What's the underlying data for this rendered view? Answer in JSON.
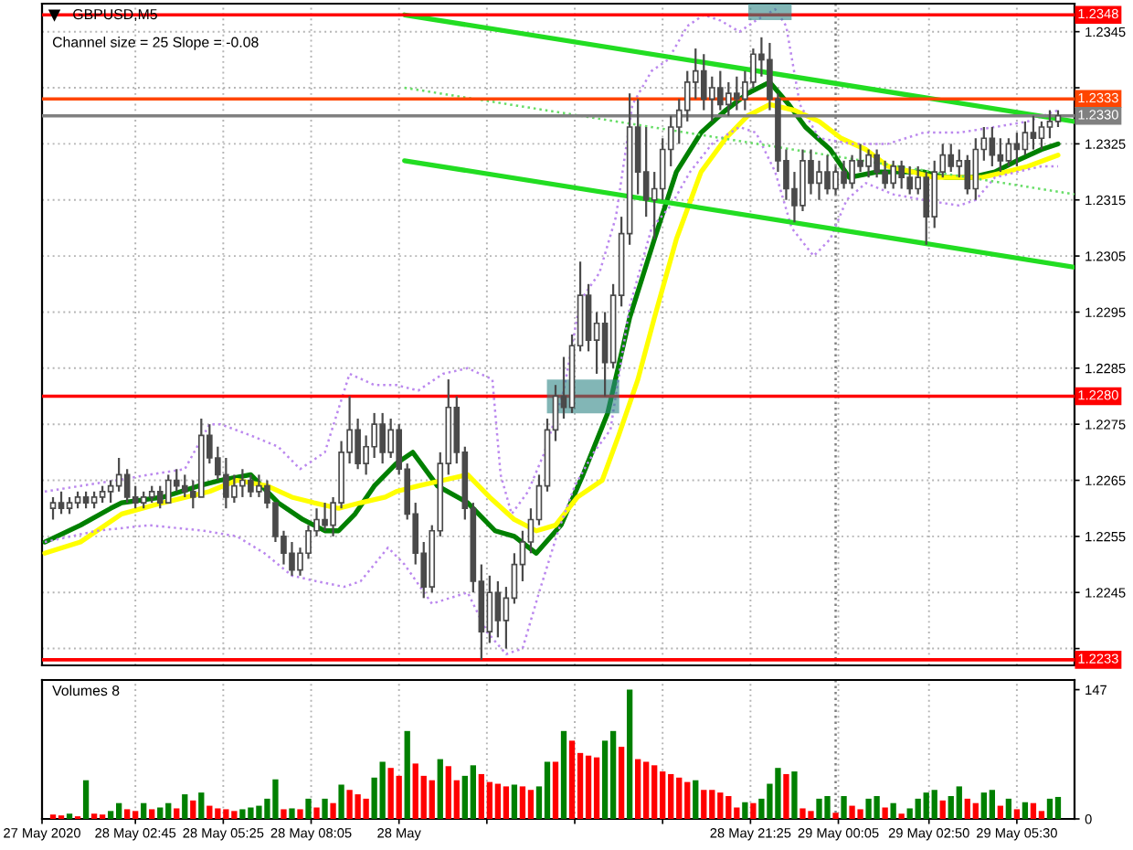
{
  "chart_data": [
    {
      "type": "candlestick",
      "title": "GBPUSD,M5",
      "annotations": [
        "Channel size = 25 Slope = -0.08"
      ],
      "x": [
        "2020-05-28T00:15",
        "2020-05-28T00:30",
        "2020-05-28T00:45",
        "2020-05-28T01:00",
        "2020-05-28T01:15",
        "2020-05-28T01:30",
        "2020-05-28T01:45",
        "2020-05-28T02:00",
        "2020-05-28T02:15",
        "2020-05-28T02:30",
        "2020-05-28T02:45",
        "2020-05-28T03:00",
        "2020-05-28T03:15",
        "2020-05-28T03:30",
        "2020-05-28T03:45",
        "2020-05-28T04:00",
        "2020-05-28T04:15",
        "2020-05-28T04:30",
        "2020-05-28T04:45",
        "2020-05-28T05:00",
        "2020-05-28T05:15",
        "2020-05-28T05:30",
        "2020-05-28T05:45",
        "2020-05-28T06:00",
        "2020-05-28T06:15",
        "2020-05-28T06:30",
        "2020-05-28T06:45",
        "2020-05-28T07:00",
        "2020-05-28T07:15",
        "2020-05-28T07:30",
        "2020-05-28T07:45",
        "2020-05-28T08:00",
        "2020-05-28T08:15",
        "2020-05-28T08:30",
        "2020-05-28T08:45",
        "2020-05-28T09:00",
        "2020-05-28T09:15",
        "2020-05-28T09:30",
        "2020-05-28T09:45",
        "2020-05-28T10:00",
        "2020-05-28T10:15",
        "2020-05-28T10:30",
        "2020-05-28T10:45",
        "2020-05-28T11:00",
        "2020-05-28T11:15",
        "2020-05-28T11:30",
        "2020-05-28T11:45",
        "2020-05-28T12:00",
        "2020-05-28T12:15",
        "2020-05-28T12:30",
        "2020-05-28T12:45",
        "2020-05-28T13:00",
        "2020-05-28T13:15",
        "2020-05-28T13:30",
        "2020-05-28T13:45",
        "2020-05-28T14:00",
        "2020-05-28T14:15",
        "2020-05-28T14:30",
        "2020-05-28T14:45",
        "2020-05-28T15:00",
        "2020-05-28T15:15",
        "2020-05-28T15:30",
        "2020-05-28T15:45",
        "2020-05-28T16:00",
        "2020-05-28T16:15",
        "2020-05-28T16:30",
        "2020-05-28T16:45",
        "2020-05-28T17:00",
        "2020-05-28T17:15",
        "2020-05-28T17:30",
        "2020-05-28T17:45",
        "2020-05-28T18:00",
        "2020-05-28T18:15",
        "2020-05-28T18:30",
        "2020-05-28T18:45",
        "2020-05-28T19:00",
        "2020-05-28T19:15",
        "2020-05-28T19:30",
        "2020-05-28T19:45",
        "2020-05-28T20:00",
        "2020-05-28T20:15",
        "2020-05-28T20:30",
        "2020-05-28T20:45",
        "2020-05-28T21:00",
        "2020-05-28T21:15",
        "2020-05-28T21:30",
        "2020-05-28T21:45",
        "2020-05-28T22:00",
        "2020-05-28T22:15",
        "2020-05-28T22:30",
        "2020-05-28T22:45",
        "2020-05-28T23:00",
        "2020-05-28T23:15",
        "2020-05-28T23:30",
        "2020-05-28T23:45",
        "2020-05-29T00:00",
        "2020-05-29T00:15",
        "2020-05-29T00:30",
        "2020-05-29T00:45",
        "2020-05-29T01:00",
        "2020-05-29T01:15",
        "2020-05-29T01:30",
        "2020-05-29T01:45",
        "2020-05-29T02:00",
        "2020-05-29T02:15",
        "2020-05-29T02:30",
        "2020-05-29T02:45",
        "2020-05-29T03:00",
        "2020-05-29T03:15",
        "2020-05-29T03:30",
        "2020-05-29T03:45",
        "2020-05-29T04:00",
        "2020-05-29T04:15",
        "2020-05-29T04:30",
        "2020-05-29T04:45",
        "2020-05-29T05:00",
        "2020-05-29T05:15",
        "2020-05-29T05:30",
        "2020-05-29T05:45",
        "2020-05-29T06:00",
        "2020-05-29T06:15",
        "2020-05-29T06:30",
        "2020-05-29T06:45"
      ],
      "ohlc": [
        [
          1.226,
          1.2262,
          1.2258,
          1.2261
        ],
        [
          1.2261,
          1.2263,
          1.2259,
          1.226
        ],
        [
          1.226,
          1.2262,
          1.2259,
          1.2261
        ],
        [
          1.2261,
          1.2263,
          1.226,
          1.2262
        ],
        [
          1.2262,
          1.2263,
          1.226,
          1.2261
        ],
        [
          1.2261,
          1.2263,
          1.226,
          1.2262
        ],
        [
          1.2262,
          1.2264,
          1.2261,
          1.2263
        ],
        [
          1.2263,
          1.2265,
          1.2261,
          1.2264
        ],
        [
          1.2264,
          1.2269,
          1.2263,
          1.2266
        ],
        [
          1.2266,
          1.2267,
          1.2261,
          1.2262
        ],
        [
          1.2262,
          1.2264,
          1.226,
          1.2261
        ],
        [
          1.2261,
          1.2263,
          1.226,
          1.2262
        ],
        [
          1.2262,
          1.2264,
          1.2261,
          1.2263
        ],
        [
          1.2263,
          1.2264,
          1.226,
          1.2261
        ],
        [
          1.2261,
          1.2266,
          1.2261,
          1.2265
        ],
        [
          1.2265,
          1.2267,
          1.2263,
          1.2264
        ],
        [
          1.2264,
          1.2266,
          1.2262,
          1.2263
        ],
        [
          1.2263,
          1.2265,
          1.226,
          1.2262
        ],
        [
          1.2262,
          1.2276,
          1.2262,
          1.2273
        ],
        [
          1.2273,
          1.2275,
          1.2268,
          1.2269
        ],
        [
          1.2269,
          1.2271,
          1.2265,
          1.2266
        ],
        [
          1.2266,
          1.2269,
          1.226,
          1.2262
        ],
        [
          1.2262,
          1.2266,
          1.2261,
          1.2264
        ],
        [
          1.2264,
          1.2267,
          1.2262,
          1.2265
        ],
        [
          1.2265,
          1.2266,
          1.2262,
          1.2263
        ],
        [
          1.2263,
          1.2266,
          1.2262,
          1.2264
        ],
        [
          1.2264,
          1.2265,
          1.226,
          1.2261
        ],
        [
          1.2261,
          1.2261,
          1.2254,
          1.2255
        ],
        [
          1.2255,
          1.2256,
          1.225,
          1.2252
        ],
        [
          1.2252,
          1.2254,
          1.2248,
          1.2249
        ],
        [
          1.2249,
          1.2253,
          1.2248,
          1.2252
        ],
        [
          1.2252,
          1.2257,
          1.2251,
          1.2256
        ],
        [
          1.2256,
          1.226,
          1.2255,
          1.2258
        ],
        [
          1.2258,
          1.2261,
          1.2256,
          1.2257
        ],
        [
          1.2257,
          1.2262,
          1.2255,
          1.2261
        ],
        [
          1.2261,
          1.2272,
          1.226,
          1.227
        ],
        [
          1.227,
          1.228,
          1.2268,
          1.2274
        ],
        [
          1.2274,
          1.2276,
          1.2267,
          1.2268
        ],
        [
          1.2268,
          1.2273,
          1.2266,
          1.2271
        ],
        [
          1.2271,
          1.2277,
          1.2269,
          1.2275
        ],
        [
          1.2275,
          1.2277,
          1.2268,
          1.227
        ],
        [
          1.227,
          1.2276,
          1.2269,
          1.2274
        ],
        [
          1.2274,
          1.2275,
          1.2266,
          1.2267
        ],
        [
          1.2267,
          1.2268,
          1.2258,
          1.2259
        ],
        [
          1.2259,
          1.2261,
          1.225,
          1.2252
        ],
        [
          1.2252,
          1.2254,
          1.2244,
          1.2246
        ],
        [
          1.2246,
          1.2257,
          1.2245,
          1.2256
        ],
        [
          1.2256,
          1.227,
          1.2255,
          1.2268
        ],
        [
          1.2268,
          1.2283,
          1.2266,
          1.2278
        ],
        [
          1.2278,
          1.228,
          1.2268,
          1.227
        ],
        [
          1.227,
          1.2271,
          1.2258,
          1.226
        ],
        [
          1.226,
          1.2261,
          1.2245,
          1.2247
        ],
        [
          1.2247,
          1.225,
          1.2233,
          1.2238
        ],
        [
          1.2238,
          1.2248,
          1.2236,
          1.2245
        ],
        [
          1.2245,
          1.2247,
          1.2237,
          1.224
        ],
        [
          1.224,
          1.2246,
          1.2235,
          1.2244
        ],
        [
          1.2244,
          1.2252,
          1.2243,
          1.225
        ],
        [
          1.225,
          1.2256,
          1.2247,
          1.2254
        ],
        [
          1.2254,
          1.226,
          1.2252,
          1.2258
        ],
        [
          1.2258,
          1.2266,
          1.2257,
          1.2264
        ],
        [
          1.2264,
          1.2276,
          1.2263,
          1.2274
        ],
        [
          1.2274,
          1.2282,
          1.2272,
          1.228
        ],
        [
          1.228,
          1.2287,
          1.2276,
          1.2278
        ],
        [
          1.2278,
          1.2291,
          1.2277,
          1.2289
        ],
        [
          1.2289,
          1.2304,
          1.2288,
          1.2298
        ],
        [
          1.2298,
          1.23,
          1.2288,
          1.229
        ],
        [
          1.229,
          1.2295,
          1.2284,
          1.2293
        ],
        [
          1.2293,
          1.2295,
          1.228,
          1.2286
        ],
        [
          1.2286,
          1.23,
          1.2285,
          1.2298
        ],
        [
          1.2298,
          1.2312,
          1.2296,
          1.2309
        ],
        [
          1.2309,
          1.2334,
          1.2307,
          1.2328
        ],
        [
          1.2328,
          1.2333,
          1.2316,
          1.232
        ],
        [
          1.232,
          1.2328,
          1.2312,
          1.2315
        ],
        [
          1.2315,
          1.232,
          1.2308,
          1.2317
        ],
        [
          1.2317,
          1.2326,
          1.2315,
          1.2324
        ],
        [
          1.2324,
          1.233,
          1.2321,
          1.2328
        ],
        [
          1.2328,
          1.2333,
          1.2325,
          1.2331
        ],
        [
          1.2331,
          1.2338,
          1.2329,
          1.2336
        ],
        [
          1.2336,
          1.2342,
          1.2333,
          1.2338
        ],
        [
          1.2338,
          1.2341,
          1.2331,
          1.2333
        ],
        [
          1.2333,
          1.2337,
          1.2329,
          1.2335
        ],
        [
          1.2335,
          1.2338,
          1.2331,
          1.2332
        ],
        [
          1.2332,
          1.2336,
          1.233,
          1.2334
        ],
        [
          1.2334,
          1.2337,
          1.2331,
          1.2333
        ],
        [
          1.2333,
          1.2338,
          1.2331,
          1.2336
        ],
        [
          1.2336,
          1.2342,
          1.2335,
          1.2341
        ],
        [
          1.2341,
          1.2344,
          1.2337,
          1.234
        ],
        [
          1.234,
          1.2343,
          1.2331,
          1.2333
        ],
        [
          1.2333,
          1.2334,
          1.232,
          1.2322
        ],
        [
          1.2322,
          1.2324,
          1.2315,
          1.2317
        ],
        [
          1.2317,
          1.232,
          1.2311,
          1.2314
        ],
        [
          1.2314,
          1.2324,
          1.2313,
          1.2322
        ],
        [
          1.2322,
          1.2324,
          1.2316,
          1.2318
        ],
        [
          1.2318,
          1.2322,
          1.2315,
          1.232
        ],
        [
          1.232,
          1.2323,
          1.2316,
          1.2317
        ],
        [
          1.2317,
          1.2321,
          1.2316,
          1.232
        ],
        [
          1.232,
          1.2322,
          1.2317,
          1.2318
        ],
        [
          1.2318,
          1.2323,
          1.2317,
          1.2322
        ],
        [
          1.2322,
          1.2325,
          1.232,
          1.2321
        ],
        [
          1.2321,
          1.2324,
          1.2319,
          1.2323
        ],
        [
          1.2323,
          1.2324,
          1.2319,
          1.232
        ],
        [
          1.232,
          1.2322,
          1.2317,
          1.2318
        ],
        [
          1.2318,
          1.2322,
          1.2317,
          1.2321
        ],
        [
          1.2321,
          1.2322,
          1.2317,
          1.2319
        ],
        [
          1.2319,
          1.2321,
          1.2316,
          1.2317
        ],
        [
          1.2317,
          1.2321,
          1.2316,
          1.2319
        ],
        [
          1.2319,
          1.232,
          1.2307,
          1.2312
        ],
        [
          1.2312,
          1.2322,
          1.231,
          1.232
        ],
        [
          1.232,
          1.2325,
          1.2319,
          1.2323
        ],
        [
          1.2323,
          1.2325,
          1.232,
          1.2321
        ],
        [
          1.2321,
          1.2324,
          1.2319,
          1.2322
        ],
        [
          1.2322,
          1.2323,
          1.2316,
          1.2317
        ],
        [
          1.2317,
          1.2326,
          1.2315,
          1.2324
        ],
        [
          1.2324,
          1.2328,
          1.2322,
          1.2326
        ],
        [
          1.2326,
          1.2328,
          1.2321,
          1.2323
        ],
        [
          1.2323,
          1.2326,
          1.232,
          1.2322
        ],
        [
          1.2322,
          1.2326,
          1.2321,
          1.2325
        ],
        [
          1.2325,
          1.2327,
          1.2321,
          1.2324
        ],
        [
          1.2324,
          1.2329,
          1.2323,
          1.2327
        ],
        [
          1.2327,
          1.233,
          1.2324,
          1.2326
        ],
        [
          1.2326,
          1.2329,
          1.2324,
          1.2328
        ],
        [
          1.2328,
          1.2331,
          1.2326,
          1.2329
        ],
        [
          1.2329,
          1.2331,
          1.2328,
          1.233
        ]
      ],
      "color": "#4a4a4a",
      "series": [
        {
          "type": "line",
          "color": "#008000",
          "x": [
            "2020-05-28T00:00",
            "2020-05-28T01:05",
            "2020-05-28T02:00",
            "2020-05-28T02:20",
            "2020-05-28T03:35",
            "2020-05-28T04:40",
            "2020-05-28T05:20",
            "2020-05-28T06:15",
            "2020-05-28T06:35",
            "2020-05-28T07:05",
            "2020-05-28T07:50",
            "2020-05-28T08:30",
            "2020-05-28T08:55",
            "2020-05-28T09:25",
            "2020-05-28T10:00",
            "2020-05-28T10:40",
            "2020-05-28T11:10",
            "2020-05-28T11:55",
            "2020-05-28T12:50",
            "2020-05-28T13:40",
            "2020-05-28T14:15",
            "2020-05-28T14:55",
            "2020-05-28T15:40",
            "2020-05-28T16:20",
            "2020-05-28T17:05",
            "2020-05-28T17:45",
            "2020-05-28T18:30",
            "2020-05-28T19:10",
            "2020-05-28T19:55",
            "2020-05-28T20:40",
            "2020-05-28T21:20",
            "2020-05-28T22:00",
            "2020-05-28T22:35",
            "2020-05-28T23:05",
            "2020-05-28T23:50",
            "2020-05-29T00:25",
            "2020-05-29T01:15",
            "2020-05-29T02:00",
            "2020-05-29T02:40",
            "2020-05-29T03:20",
            "2020-05-29T04:05",
            "2020-05-29T04:50",
            "2020-05-29T05:30",
            "2020-05-29T06:15",
            "2020-05-29T06:45"
          ],
          "values": [
            1.2254,
            1.2257,
            1.226,
            1.2261,
            1.2262,
            1.2264,
            1.2265,
            1.2266,
            1.2264,
            1.2261,
            1.2258,
            1.2256,
            1.2256,
            1.2259,
            1.2264,
            1.2268,
            1.227,
            1.2264,
            1.2261,
            1.2256,
            1.2255,
            1.2252,
            1.2257,
            1.2266,
            1.2277,
            1.2294,
            1.2308,
            1.232,
            1.2327,
            1.2331,
            1.2334,
            1.2336,
            1.2332,
            1.2328,
            1.2324,
            1.2319,
            1.232,
            1.232,
            1.232,
            1.2319,
            1.2319,
            1.232,
            1.2322,
            1.2324,
            1.2325
          ]
        },
        {
          "type": "line",
          "color": "#ffff00",
          "x": [
            "2020-05-28T00:00",
            "2020-05-28T01:05",
            "2020-05-28T02:20",
            "2020-05-28T03:35",
            "2020-05-28T05:00",
            "2020-05-28T05:50",
            "2020-05-28T06:45",
            "2020-05-28T07:30",
            "2020-05-28T08:10",
            "2020-05-28T08:55",
            "2020-05-28T09:35",
            "2020-05-28T10:20",
            "2020-05-28T10:40",
            "2020-05-28T11:20",
            "2020-05-28T12:05",
            "2020-05-28T12:50",
            "2020-05-28T13:30",
            "2020-05-28T14:15",
            "2020-05-28T14:55",
            "2020-05-28T15:30",
            "2020-05-28T16:10",
            "2020-05-28T16:55",
            "2020-05-28T17:25",
            "2020-05-28T18:00",
            "2020-05-28T18:30",
            "2020-05-28T19:10",
            "2020-05-28T19:55",
            "2020-05-28T20:40",
            "2020-05-28T21:20",
            "2020-05-28T22:00",
            "2020-05-28T22:45",
            "2020-05-28T23:30",
            "2020-05-29T00:10",
            "2020-05-29T00:55",
            "2020-05-29T01:35",
            "2020-05-29T02:20",
            "2020-05-29T03:00",
            "2020-05-29T03:45",
            "2020-05-29T04:25",
            "2020-05-29T05:10",
            "2020-05-29T05:50",
            "2020-05-29T06:45"
          ],
          "values": [
            1.2252,
            1.2254,
            1.2259,
            1.2261,
            1.2263,
            1.2265,
            1.2264,
            1.2262,
            1.2261,
            1.226,
            1.2261,
            1.2262,
            1.2263,
            1.2264,
            1.2265,
            1.2266,
            1.2262,
            1.2258,
            1.2256,
            1.2257,
            1.2262,
            1.2265,
            1.2273,
            1.2283,
            1.2294,
            1.2308,
            1.232,
            1.2326,
            1.233,
            1.2332,
            1.2331,
            1.2329,
            1.2326,
            1.2324,
            1.2321,
            1.232,
            1.2319,
            1.2319,
            1.2319,
            1.232,
            1.2321,
            1.2323
          ]
        },
        {
          "type": "line",
          "color": "#bb88ee",
          "line_style": "dotted",
          "x": [
            "2020-05-28T00:00",
            "2020-05-28T01:05",
            "2020-05-28T02:10",
            "2020-05-28T03:10",
            "2020-05-28T04:15",
            "2020-05-28T05:00",
            "2020-05-28T05:20",
            "2020-05-28T06:15",
            "2020-05-28T07:05",
            "2020-05-28T07:45",
            "2020-05-28T08:30",
            "2020-05-28T09:15",
            "2020-05-28T10:00",
            "2020-05-28T10:40",
            "2020-05-28T11:20",
            "2020-05-28T12:05",
            "2020-05-28T12:50",
            "2020-05-28T13:35",
            "2020-05-28T13:50",
            "2020-05-28T14:10",
            "2020-05-28T14:40",
            "2020-05-28T15:10",
            "2020-05-28T15:45",
            "2020-05-28T16:15",
            "2020-05-28T16:50",
            "2020-05-28T17:20",
            "2020-05-28T17:50",
            "2020-05-28T18:25",
            "2020-05-28T18:55",
            "2020-05-28T19:30",
            "2020-05-28T20:00",
            "2020-05-28T20:30",
            "2020-05-28T21:05",
            "2020-05-28T21:35",
            "2020-05-28T22:10",
            "2020-05-28T22:30",
            "2020-05-28T22:55",
            "2020-05-28T23:30",
            "2020-05-29T00:30",
            "2020-05-29T01:35",
            "2020-05-29T02:40",
            "2020-05-29T03:45",
            "2020-05-29T04:50",
            "2020-05-29T05:50",
            "2020-05-29T06:45"
          ],
          "values": [
            1.2263,
            1.2264,
            1.2265,
            1.2266,
            1.2267,
            1.2275,
            1.2275,
            1.2273,
            1.2271,
            1.2267,
            1.227,
            1.2284,
            1.2282,
            1.2282,
            1.2281,
            1.2284,
            1.2285,
            1.2283,
            1.2266,
            1.2259,
            1.2263,
            1.227,
            1.2281,
            1.2297,
            1.2302,
            1.2312,
            1.2332,
            1.2338,
            1.234,
            1.2346,
            1.2348,
            1.2347,
            1.2345,
            1.2347,
            1.2349,
            1.2346,
            1.2332,
            1.2326,
            1.2325,
            1.2325,
            1.2327,
            1.2327,
            1.2328,
            1.2329,
            1.2331
          ]
        },
        {
          "type": "line",
          "color": "#bb88ee",
          "line_style": "dotted",
          "x": [
            "2020-05-28T00:00",
            "2020-05-28T01:35",
            "2020-05-28T03:10",
            "2020-05-28T04:50",
            "2020-05-28T05:50",
            "2020-05-28T06:40",
            "2020-05-28T07:30",
            "2020-05-28T08:15",
            "2020-05-28T09:05",
            "2020-05-28T09:35",
            "2020-05-28T10:25",
            "2020-05-28T10:55",
            "2020-05-28T11:45",
            "2020-05-28T12:50",
            "2020-05-28T13:25",
            "2020-05-28T14:00",
            "2020-05-28T14:30",
            "2020-05-28T15:00",
            "2020-05-28T15:35",
            "2020-05-28T16:05",
            "2020-05-28T16:40",
            "2020-05-28T17:10",
            "2020-05-28T17:45",
            "2020-05-28T18:25",
            "2020-05-28T19:00",
            "2020-05-28T19:35",
            "2020-05-28T20:15",
            "2020-05-28T21:05",
            "2020-05-28T21:35",
            "2020-05-28T22:10",
            "2020-05-28T22:40",
            "2020-05-28T23:20",
            "2020-05-28T23:50",
            "2020-05-29T00:20",
            "2020-05-29T00:55",
            "2020-05-29T01:45",
            "2020-05-29T02:40",
            "2020-05-29T03:45",
            "2020-05-29T04:15",
            "2020-05-29T04:50",
            "2020-05-29T05:30",
            "2020-05-29T06:15",
            "2020-05-29T06:45"
          ],
          "values": [
            1.2254,
            1.2256,
            1.2257,
            1.2256,
            1.2255,
            1.2252,
            1.2248,
            1.2247,
            1.2246,
            1.2247,
            1.2253,
            1.225,
            1.2243,
            1.2245,
            1.2238,
            1.2234,
            1.2235,
            1.2245,
            1.2256,
            1.2264,
            1.227,
            1.2274,
            1.2296,
            1.231,
            1.2314,
            1.232,
            1.2325,
            1.2328,
            1.2327,
            1.232,
            1.231,
            1.2305,
            1.2308,
            1.2315,
            1.2318,
            1.2316,
            1.2315,
            1.2314,
            1.2315,
            1.2319,
            1.232,
            1.2321,
            1.2321
          ]
        },
        {
          "type": "line",
          "color": "#22dd22",
          "x": [
            "2020-05-28T10:55",
            "2020-05-29T07:15"
          ],
          "values": [
            1.2348,
            1.2329
          ]
        },
        {
          "type": "line",
          "color": "#66dd66",
          "line_style": "dotted",
          "x": [
            "2020-05-28T10:55",
            "2020-05-29T07:15"
          ],
          "values": [
            1.2335,
            1.2316
          ]
        },
        {
          "type": "line",
          "color": "#22dd22",
          "x": [
            "2020-05-28T10:55",
            "2020-05-29T07:15"
          ],
          "values": [
            1.2322,
            1.2303
          ]
        }
      ],
      "xlim": [
        "2020-05-27T23:55",
        "2020-05-29T07:15"
      ],
      "xticks": [
        {
          "value": "2020-05-27T23:55",
          "label": null
        },
        {
          "value": "2020-05-28T02:45",
          "label": null
        },
        {
          "value": "2020-05-28T05:25",
          "label": null
        },
        {
          "value": "2020-05-28T08:05",
          "label": null
        },
        {
          "value": "2020-05-28T10:45",
          "label": null
        },
        {
          "value": "2020-05-28T13:25",
          "label": null
        },
        {
          "value": "2020-05-28T16:05",
          "label": null
        },
        {
          "value": "2020-05-28T18:45",
          "label": null
        },
        {
          "value": "2020-05-28T21:25",
          "label": null
        },
        {
          "value": "2020-05-29T00:05",
          "label": null
        },
        {
          "value": "2020-05-29T02:50",
          "label": null
        },
        {
          "value": "2020-05-29T05:30",
          "label": null
        }
      ],
      "ylim": [
        1.2232,
        1.235
      ],
      "yticks": [
        {
          "value": 1.2235,
          "label": null
        },
        1.2245,
        1.2255,
        1.2265,
        1.2275,
        1.2285,
        1.2295,
        1.2305,
        1.2315,
        1.2325,
        {
          "value": 1.2335,
          "label": null
        },
        1.2345
      ],
      "tick_labels": "y",
      "grid": true,
      "ref_lines": [
        {
          "axis": "y",
          "value": 1.2348,
          "label": "1.2348",
          "color": "#ff0000"
        },
        {
          "axis": "y",
          "value": 1.2333,
          "label": "1.2333",
          "color": "#ff4500"
        },
        {
          "axis": "y",
          "value": 1.233,
          "label": "1.2330",
          "color": "#808080"
        },
        {
          "axis": "y",
          "value": 1.228,
          "label": "1.2280",
          "color": "#ff0000"
        },
        {
          "axis": "y",
          "value": 1.2233,
          "label": "1.2233",
          "color": "#ff0000"
        },
        {
          "axis": "x",
          "value": "2020-05-29T00:00",
          "color": "#808080",
          "line_style": "dotted"
        }
      ]
    },
    {
      "type": "bar",
      "title": "Volumes 8",
      "x": [
        "2020-05-28T00:15",
        "2020-05-28T00:30",
        "2020-05-28T00:45",
        "2020-05-28T01:00",
        "2020-05-28T01:15",
        "2020-05-28T01:30",
        "2020-05-28T01:45",
        "2020-05-28T02:00",
        "2020-05-28T02:15",
        "2020-05-28T02:30",
        "2020-05-28T02:45",
        "2020-05-28T03:00",
        "2020-05-28T03:15",
        "2020-05-28T03:30",
        "2020-05-28T03:45",
        "2020-05-28T04:00",
        "2020-05-28T04:15",
        "2020-05-28T04:30",
        "2020-05-28T04:45",
        "2020-05-28T05:00",
        "2020-05-28T05:15",
        "2020-05-28T05:30",
        "2020-05-28T05:45",
        "2020-05-28T06:00",
        "2020-05-28T06:15",
        "2020-05-28T06:30",
        "2020-05-28T06:45",
        "2020-05-28T07:00",
        "2020-05-28T07:15",
        "2020-05-28T07:30",
        "2020-05-28T07:45",
        "2020-05-28T08:00",
        "2020-05-28T08:15",
        "2020-05-28T08:30",
        "2020-05-28T08:45",
        "2020-05-28T09:00",
        "2020-05-28T09:15",
        "2020-05-28T09:30",
        "2020-05-28T09:45",
        "2020-05-28T10:00",
        "2020-05-28T10:15",
        "2020-05-28T10:30",
        "2020-05-28T10:45",
        "2020-05-28T11:00",
        "2020-05-28T11:15",
        "2020-05-28T11:30",
        "2020-05-28T11:45",
        "2020-05-28T12:00",
        "2020-05-28T12:15",
        "2020-05-28T12:30",
        "2020-05-28T12:45",
        "2020-05-28T13:00",
        "2020-05-28T13:15",
        "2020-05-28T13:30",
        "2020-05-28T13:45",
        "2020-05-28T14:00",
        "2020-05-28T14:15",
        "2020-05-28T14:30",
        "2020-05-28T14:45",
        "2020-05-28T15:00",
        "2020-05-28T15:15",
        "2020-05-28T15:30",
        "2020-05-28T15:45",
        "2020-05-28T16:00",
        "2020-05-28T16:15",
        "2020-05-28T16:30",
        "2020-05-28T16:45",
        "2020-05-28T17:00",
        "2020-05-28T17:15",
        "2020-05-28T17:30",
        "2020-05-28T17:45",
        "2020-05-28T18:00",
        "2020-05-28T18:15",
        "2020-05-28T18:30",
        "2020-05-28T18:45",
        "2020-05-28T19:00",
        "2020-05-28T19:15",
        "2020-05-28T19:30",
        "2020-05-28T19:45",
        "2020-05-28T20:00",
        "2020-05-28T20:15",
        "2020-05-28T20:30",
        "2020-05-28T20:45",
        "2020-05-28T21:00",
        "2020-05-28T21:15",
        "2020-05-28T21:30",
        "2020-05-28T21:45",
        "2020-05-28T22:00",
        "2020-05-28T22:15",
        "2020-05-28T22:30",
        "2020-05-28T22:45",
        "2020-05-28T23:00",
        "2020-05-28T23:15",
        "2020-05-28T23:30",
        "2020-05-28T23:45",
        "2020-05-29T00:00",
        "2020-05-29T00:15",
        "2020-05-29T00:30",
        "2020-05-29T00:45",
        "2020-05-29T01:00",
        "2020-05-29T01:15",
        "2020-05-29T01:30",
        "2020-05-29T01:45",
        "2020-05-29T02:00",
        "2020-05-29T02:15",
        "2020-05-29T02:30",
        "2020-05-29T02:45",
        "2020-05-29T03:00",
        "2020-05-29T03:15",
        "2020-05-29T03:30",
        "2020-05-29T03:45",
        "2020-05-29T04:00",
        "2020-05-29T04:15",
        "2020-05-29T04:30",
        "2020-05-29T04:45",
        "2020-05-29T05:00",
        "2020-05-29T05:15",
        "2020-05-29T05:30",
        "2020-05-29T05:45",
        "2020-05-29T06:00",
        "2020-05-29T06:15",
        "2020-05-29T06:30",
        "2020-05-29T06:45"
      ],
      "values": [
        5,
        4,
        6,
        3,
        44,
        6,
        5,
        9,
        18,
        11,
        9,
        18,
        11,
        13,
        18,
        12,
        28,
        21,
        30,
        15,
        12,
        11,
        9,
        11,
        13,
        15,
        23,
        45,
        11,
        12,
        11,
        23,
        13,
        23,
        18,
        39,
        33,
        28,
        23,
        47,
        65,
        58,
        49,
        100,
        63,
        49,
        44,
        68,
        60,
        44,
        49,
        61,
        51,
        42,
        40,
        37,
        39,
        37,
        33,
        37,
        65,
        65,
        100,
        89,
        75,
        72,
        70,
        89,
        100,
        82,
        147,
        68,
        65,
        61,
        54,
        51,
        47,
        42,
        44,
        33,
        33,
        30,
        26,
        13,
        19,
        18,
        23,
        40,
        58,
        51,
        54,
        12,
        9,
        23,
        26,
        7,
        26,
        15,
        11,
        23,
        26,
        13,
        18,
        6,
        12,
        23,
        30,
        33,
        21,
        26,
        37,
        23,
        18,
        30,
        33,
        15,
        23,
        11,
        19,
        18,
        9,
        23,
        25
      ],
      "colors": [
        "#ff0000",
        "#ff0000",
        "#008000",
        "#ff0000",
        "#008000",
        "#ff0000",
        "#ff0000",
        "#008000",
        "#008000",
        "#ff0000",
        "#ff0000",
        "#008000",
        "#ff0000",
        "#008000",
        "#008000",
        "#ff0000",
        "#008000",
        "#ff0000",
        "#008000",
        "#ff0000",
        "#ff0000",
        "#ff0000",
        "#ff0000",
        "#008000",
        "#008000",
        "#008000",
        "#008000",
        "#008000",
        "#ff0000",
        "#008000",
        "#ff0000",
        "#008000",
        "#ff0000",
        "#008000",
        "#ff0000",
        "#008000",
        "#ff0000",
        "#ff0000",
        "#ff0000",
        "#008000",
        "#008000",
        "#ff0000",
        "#ff0000",
        "#008000",
        "#ff0000",
        "#ff0000",
        "#ff0000",
        "#008000",
        "#ff0000",
        "#ff0000",
        "#008000",
        "#008000",
        "#ff0000",
        "#ff0000",
        "#ff0000",
        "#ff0000",
        "#008000",
        "#ff0000",
        "#ff0000",
        "#008000",
        "#008000",
        "#ff0000",
        "#008000",
        "#ff0000",
        "#ff0000",
        "#ff0000",
        "#ff0000",
        "#008000",
        "#008000",
        "#ff0000",
        "#008000",
        "#ff0000",
        "#ff0000",
        "#ff0000",
        "#ff0000",
        "#ff0000",
        "#ff0000",
        "#ff0000",
        "#008000",
        "#ff0000",
        "#ff0000",
        "#ff0000",
        "#ff0000",
        "#ff0000",
        "#008000",
        "#ff0000",
        "#008000",
        "#008000",
        "#008000",
        "#ff0000",
        "#008000",
        "#ff0000",
        "#ff0000",
        "#008000",
        "#008000",
        "#ff0000",
        "#008000",
        "#ff0000",
        "#ff0000",
        "#008000",
        "#008000",
        "#ff0000",
        "#008000",
        "#ff0000",
        "#008000",
        "#008000",
        "#008000",
        "#008000",
        "#ff0000",
        "#008000",
        "#008000",
        "#ff0000",
        "#ff0000",
        "#008000",
        "#008000",
        "#ff0000",
        "#008000",
        "#ff0000",
        "#008000",
        "#ff0000",
        "#ff0000",
        "#008000",
        "#008000"
      ],
      "xlim": [
        "2020-05-27T23:55",
        "2020-05-29T07:15"
      ],
      "xticks": [
        {
          "value": "2020-05-27T23:55",
          "label": "27 May 2020"
        },
        {
          "value": "2020-05-28T02:45",
          "label": "28 May 02:45"
        },
        {
          "value": "2020-05-28T05:25",
          "label": "28 May 05:25"
        },
        {
          "value": "2020-05-28T08:05",
          "label": "28 May 08:05"
        },
        {
          "value": "2020-05-28T10:45",
          "label": "28 May"
        },
        {
          "value": "2020-05-28T13:25",
          "label": null
        },
        {
          "value": "2020-05-28T16:05",
          "label": null
        },
        {
          "value": "2020-05-28T18:45",
          "label": null
        },
        {
          "value": "2020-05-28T21:25",
          "label": "28 May 21:25"
        },
        {
          "value": "2020-05-29T00:05",
          "label": "29 May 00:05"
        },
        {
          "value": "2020-05-29T02:50",
          "label": "29 May 02:50"
        },
        {
          "value": "2020-05-29T05:30",
          "label": "29 May 05:30"
        }
      ],
      "ylim": [
        0,
        158
      ],
      "yticks": [
        0,
        147
      ],
      "grid": "x",
      "ref_lines": [
        {
          "axis": "x",
          "value": "2020-05-29T00:00",
          "color": "#808080",
          "line_style": "dotted"
        }
      ]
    }
  ]
}
